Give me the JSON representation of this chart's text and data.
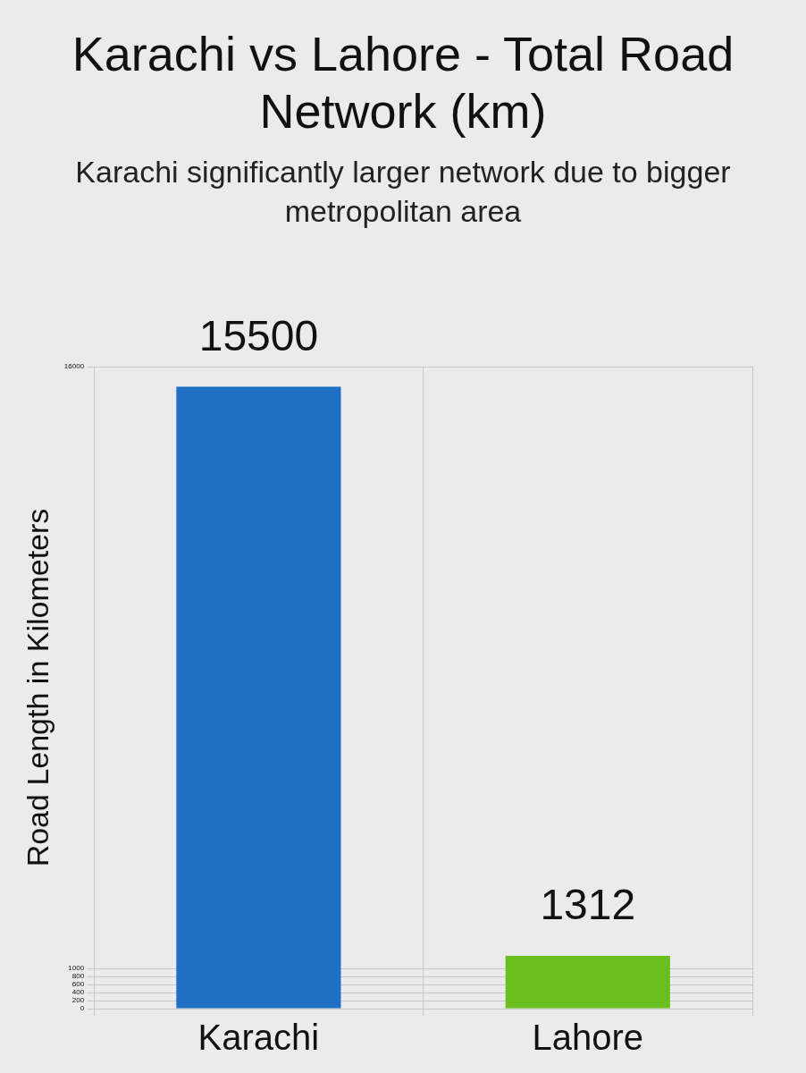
{
  "chart_data": {
    "type": "bar",
    "title": "Karachi vs Lahore - Total Road Network (km)",
    "subtitle": "Karachi significantly larger network due to bigger metropolitan area",
    "ylabel": "Road Length in Kilometers",
    "categories": [
      "Karachi",
      "Lahore"
    ],
    "values": [
      15500,
      1312
    ],
    "colors": [
      "#1f6fc5",
      "#6abf1e"
    ],
    "ylim": [
      0,
      16000
    ],
    "yticks": [
      0,
      200,
      400,
      600,
      800,
      1000,
      16000
    ],
    "grid": true,
    "data_labels": true
  }
}
